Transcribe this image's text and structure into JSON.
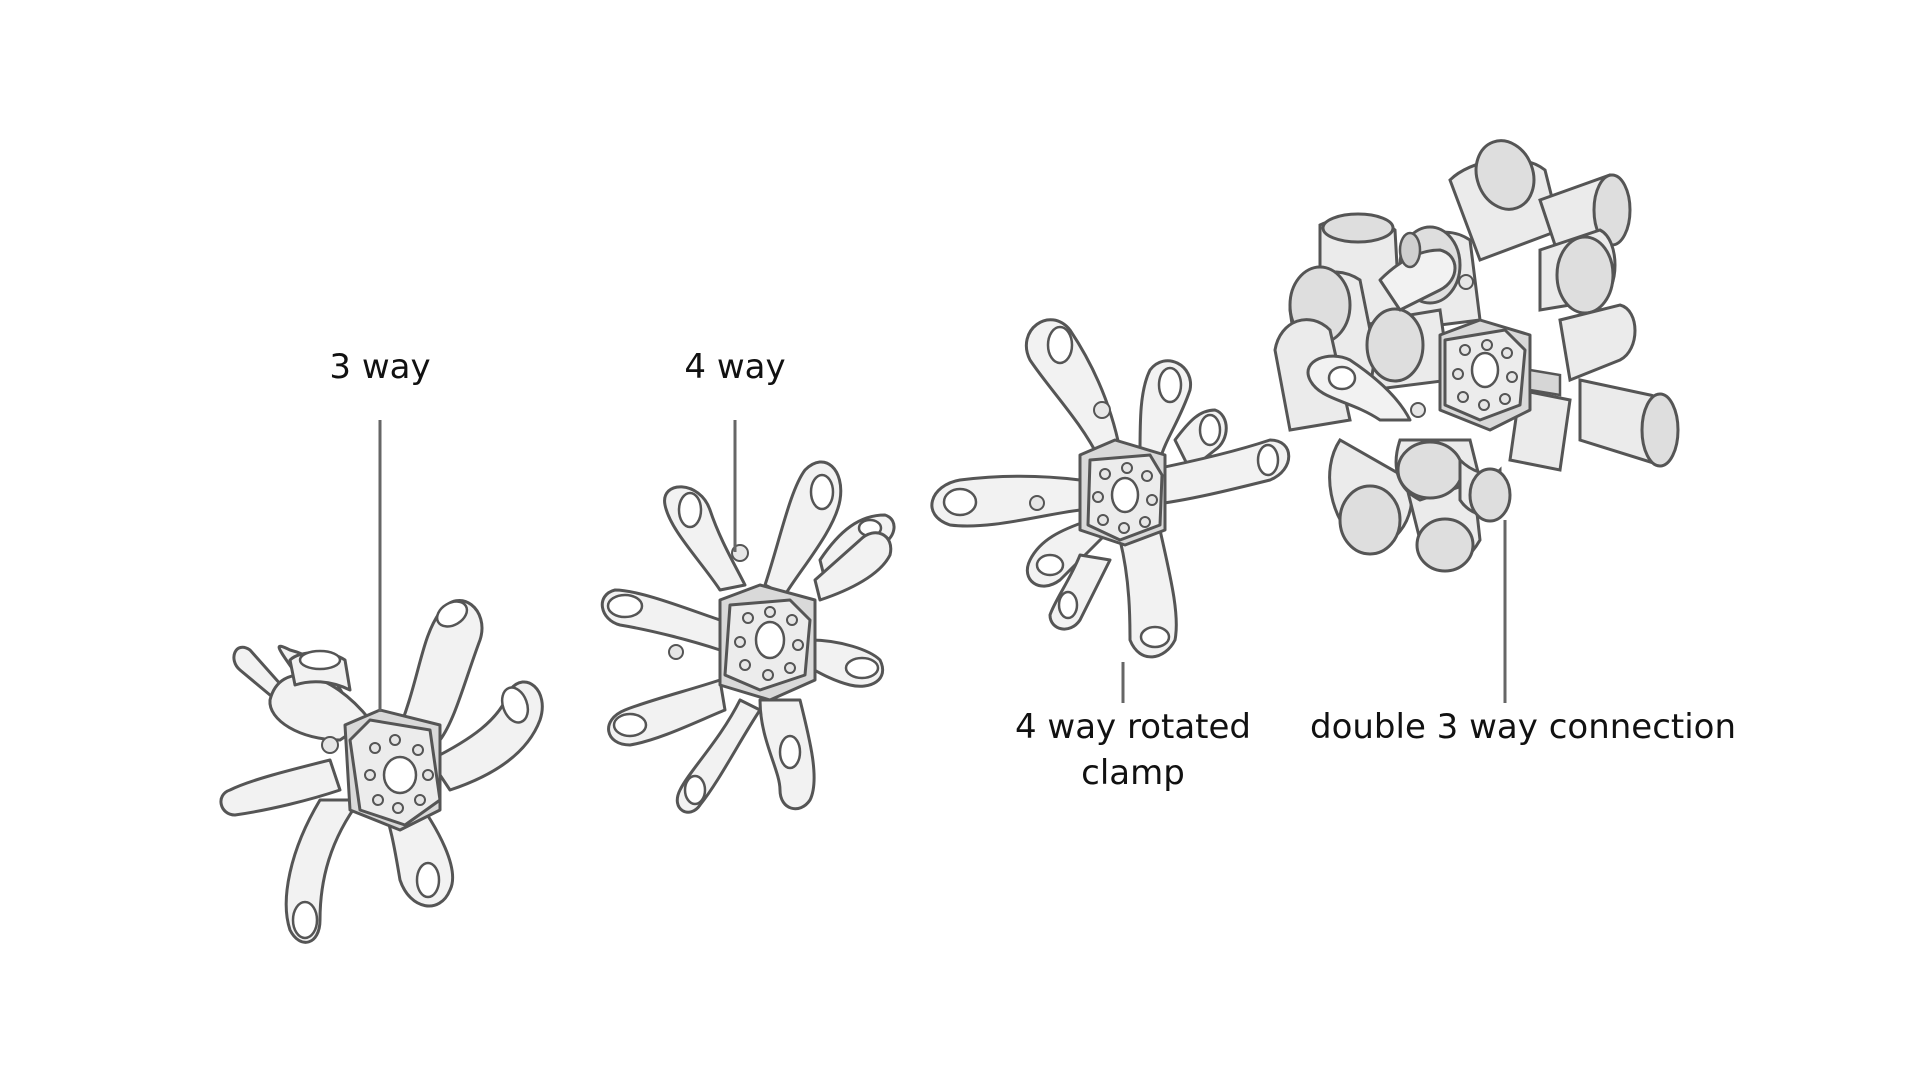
{
  "diagram": {
    "labels": {
      "three_way": "3 way",
      "four_way": "4 way",
      "four_way_rotated_line1": "4 way rotated",
      "four_way_rotated_line2": "clamp",
      "double_three_way": "double 3 way connection"
    }
  }
}
